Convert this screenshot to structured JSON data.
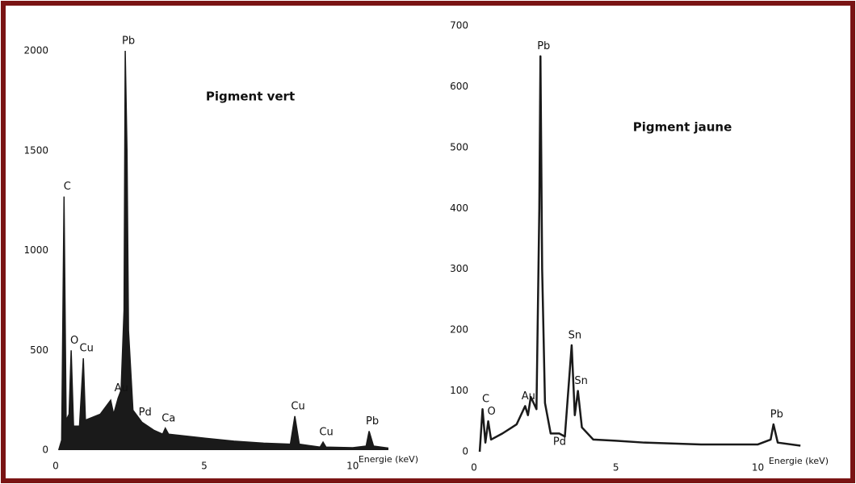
{
  "chart_data": [
    {
      "type": "area",
      "title": "Pigment vert",
      "xlabel": "Energie (keV)",
      "color": "#1a1a1a",
      "x": [
        0.1,
        0.2,
        0.28,
        0.35,
        0.45,
        0.52,
        0.6,
        0.8,
        0.93,
        1.0,
        1.5,
        1.85,
        1.95,
        2.1,
        2.2,
        2.3,
        2.34,
        2.4,
        2.45,
        2.6,
        2.9,
        3.3,
        3.6,
        3.69,
        3.8,
        5,
        6,
        7,
        7.9,
        8.05,
        8.2,
        8.9,
        9,
        9.1,
        10,
        10.45,
        10.55,
        10.7,
        11.2
      ],
      "y": [
        0,
        50,
        1270,
        150,
        180,
        500,
        120,
        120,
        460,
        150,
        180,
        250,
        180,
        260,
        300,
        700,
        2000,
        1500,
        600,
        200,
        140,
        100,
        80,
        110,
        80,
        60,
        45,
        35,
        30,
        170,
        30,
        15,
        40,
        15,
        12,
        20,
        95,
        20,
        10
      ],
      "xlim": [
        0,
        11.5
      ],
      "ylim": [
        0,
        2000
      ],
      "xticks": [
        0,
        5,
        10
      ],
      "yticks": [
        0,
        500,
        1000,
        1500,
        2000
      ],
      "annotations": [
        {
          "text": "C",
          "x": 0.28
        },
        {
          "text": "O",
          "x": 0.52
        },
        {
          "text": "Cu",
          "x": 0.93
        },
        {
          "text": "Au",
          "x": 2.1
        },
        {
          "text": "Pb",
          "x": 2.34
        },
        {
          "text": "Pd",
          "x": 2.9
        },
        {
          "text": "Ca",
          "x": 3.69
        },
        {
          "text": "Cu",
          "x": 8.05
        },
        {
          "text": "Cu",
          "x": 9.0
        },
        {
          "text": "Pb",
          "x": 10.55
        }
      ]
    },
    {
      "type": "line",
      "title": "Pigment jaune",
      "xlabel": "Energie (keV)",
      "color": "#1a1a1a",
      "x": [
        0.2,
        0.3,
        0.4,
        0.5,
        0.6,
        1.0,
        1.5,
        1.8,
        1.9,
        2.0,
        2.2,
        2.3,
        2.34,
        2.4,
        2.5,
        2.7,
        3.0,
        3.2,
        3.44,
        3.55,
        3.66,
        3.8,
        4.2,
        5,
        6,
        8,
        10,
        10.45,
        10.55,
        10.7,
        11.5
      ],
      "y": [
        0,
        70,
        15,
        50,
        20,
        30,
        45,
        75,
        60,
        90,
        70,
        400,
        650,
        300,
        80,
        30,
        30,
        25,
        175,
        60,
        100,
        40,
        20,
        18,
        15,
        12,
        12,
        20,
        45,
        15,
        10
      ],
      "xlim": [
        0,
        11.75
      ],
      "ylim": [
        0,
        700
      ],
      "xticks": [
        0,
        5,
        10
      ],
      "yticks": [
        0,
        100,
        200,
        300,
        400,
        500,
        600,
        700
      ],
      "annotations": [
        {
          "text": "C",
          "x": 0.3
        },
        {
          "text": "O",
          "x": 0.5
        },
        {
          "text": "Au",
          "x": 1.8
        },
        {
          "text": "Pb",
          "x": 2.34
        },
        {
          "text": "Pd",
          "x": 2.9
        },
        {
          "text": "Sn",
          "x": 3.44
        },
        {
          "text": "Sn",
          "x": 3.66
        },
        {
          "text": "Pb",
          "x": 10.55
        }
      ]
    }
  ]
}
